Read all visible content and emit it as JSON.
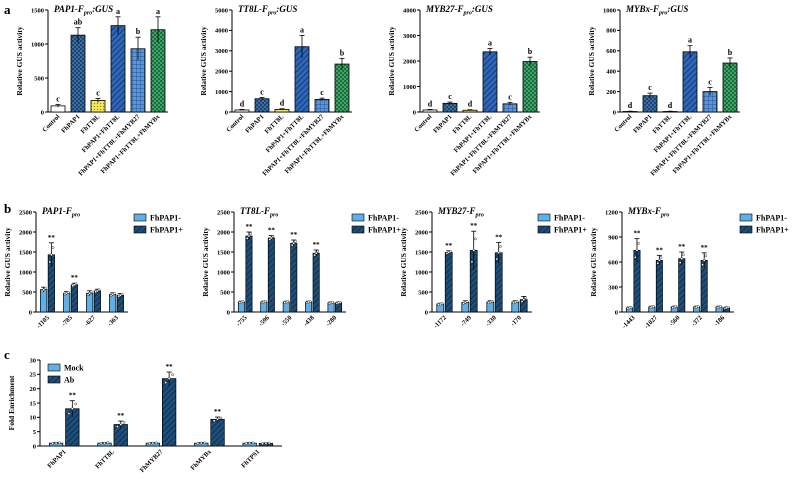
{
  "panel_labels": [
    "a",
    "b",
    "c"
  ],
  "colors": {
    "control": "#ffffff",
    "fhpap1": "#3a6ea5",
    "fhtt8l": "#f2e65a",
    "pap1_tt8l": "#2e66b8",
    "pap1_tt8l_myb27": "#5b95d9",
    "pap1_tt8l_mybx": "#3fa46a",
    "minus": "#5fb0e6",
    "plus": "#1e4f7a",
    "mock": "#5fb0e6",
    "ab": "#1e4f7a"
  },
  "chart_data": [
    {
      "id": "a1",
      "type": "bar",
      "title_main": "PAP1-F",
      "title_sub": "pro",
      "title_tail": ":GUS",
      "ylabel": "Relative GUS activity",
      "ylim": [
        0,
        1500
      ],
      "yticks": [
        0,
        500,
        1000,
        1500
      ],
      "categories": [
        "Control",
        "FhPAP1",
        "FhTT8L",
        "FhPAP1+FhTT8L",
        "FhPAP1+FhTT8L+FhMYB27",
        "FhPAP1+FhTT8L+FhMYBx"
      ],
      "values": [
        90,
        1130,
        170,
        1270,
        930,
        1210
      ],
      "errors": [
        20,
        110,
        30,
        130,
        170,
        190
      ],
      "letters": [
        "c",
        "ab",
        "c",
        "a",
        "b",
        "a"
      ]
    },
    {
      "id": "a2",
      "type": "bar",
      "title_main": "TT8L-F",
      "title_sub": "pro",
      "title_tail": ":GUS",
      "ylabel": "Relative GUS activity",
      "ylim": [
        0,
        5000
      ],
      "yticks": [
        0,
        1000,
        2000,
        3000,
        4000,
        5000
      ],
      "categories": [
        "Control",
        "FhPAP1",
        "FhTT8L",
        "FhPAP1+FhTT8L",
        "FhPAP1+FhTT8L+FhMYB27",
        "FhPAP1+FhTT8L+FhMYBx"
      ],
      "values": [
        100,
        650,
        130,
        3200,
        620,
        2350
      ],
      "errors": [
        30,
        60,
        30,
        550,
        60,
        280
      ],
      "letters": [
        "d",
        "c",
        "d",
        "a",
        "c",
        "b"
      ]
    },
    {
      "id": "a3",
      "type": "bar",
      "title_main": "MYB27-F",
      "title_sub": "pro",
      "title_tail": ":GUS",
      "ylabel": "Relative GUS activity",
      "ylim": [
        0,
        4000
      ],
      "yticks": [
        0,
        1000,
        2000,
        3000,
        4000
      ],
      "categories": [
        "Control",
        "FhPAP1",
        "FhTT8L",
        "FhPAP1+FhTT8L",
        "FhPAP1+FhTT8L+FhMYB27",
        "FhPAP1+FhTT8L+FhMYBx"
      ],
      "values": [
        80,
        340,
        70,
        2360,
        320,
        1980
      ],
      "errors": [
        20,
        50,
        20,
        130,
        60,
        170
      ],
      "letters": [
        "d",
        "c",
        "d",
        "a",
        "c",
        "b"
      ]
    },
    {
      "id": "a4",
      "type": "bar",
      "title_main": "MYBx-F",
      "title_sub": "pro",
      "title_tail": ":GUS",
      "ylabel": "Relative GUS activity",
      "ylim": [
        0,
        1000
      ],
      "yticks": [
        0,
        200,
        400,
        600,
        800,
        1000
      ],
      "categories": [
        "Control",
        "FhPAP1",
        "FhTT8L",
        "FhPAP1+FhTT8L",
        "FhPAP1+FhTT8L+FhMYB27",
        "FhPAP1+FhTT8L+FhMYBx"
      ],
      "values": [
        5,
        160,
        5,
        590,
        200,
        480
      ],
      "errors": [
        3,
        25,
        3,
        60,
        40,
        50
      ],
      "letters": [
        "d",
        "c",
        "d",
        "a",
        "c",
        "b"
      ]
    },
    {
      "id": "b1",
      "type": "grouped-bar",
      "title_main": "PAP1-F",
      "title_sub": "pro",
      "title_tail": "",
      "ylabel": "Relative GUS activity",
      "ylim": [
        0,
        2500
      ],
      "yticks": [
        0,
        500,
        1000,
        1500,
        2000,
        2500
      ],
      "categories": [
        "-1105",
        "-785",
        "-627",
        "-363"
      ],
      "series": [
        {
          "name": "FhPAP1-",
          "values": [
            560,
            470,
            470,
            440
          ],
          "errors": [
            60,
            40,
            60,
            40
          ]
        },
        {
          "name": "FhPAP1+",
          "values": [
            1430,
            680,
            530,
            420
          ],
          "errors": [
            300,
            40,
            40,
            40
          ]
        }
      ],
      "sig": [
        "**",
        "**",
        "",
        ""
      ]
    },
    {
      "id": "b2",
      "type": "grouped-bar",
      "title_main": "TT8L-F",
      "title_sub": "pro",
      "title_tail": "",
      "ylabel": "Relative GUS activity",
      "ylim": [
        0,
        2500
      ],
      "yticks": [
        0,
        500,
        1000,
        1500,
        2000,
        2500
      ],
      "categories": [
        "-755",
        "-596",
        "-550",
        "-438",
        "-280"
      ],
      "series": [
        {
          "name": "FhPAP1-",
          "values": [
            250,
            250,
            250,
            250,
            230
          ],
          "errors": [
            20,
            20,
            20,
            20,
            20
          ]
        },
        {
          "name": "FhPAP1+",
          "values": [
            1900,
            1850,
            1720,
            1470,
            230
          ],
          "errors": [
            100,
            60,
            80,
            80,
            20
          ]
        }
      ],
      "sig": [
        "**",
        "**",
        "**",
        "**",
        ""
      ]
    },
    {
      "id": "b3",
      "type": "grouped-bar",
      "title_main": "MYB27-F",
      "title_sub": "pro",
      "title_tail": "",
      "ylabel": "Relative GUS activity",
      "ylim": [
        0,
        2500
      ],
      "yticks": [
        0,
        500,
        1000,
        1500,
        2000,
        2500
      ],
      "categories": [
        "-1172",
        "-749",
        "-330",
        "-170"
      ],
      "series": [
        {
          "name": "FhPAP1-",
          "values": [
            200,
            240,
            250,
            250
          ],
          "errors": [
            20,
            40,
            30,
            30
          ]
        },
        {
          "name": "FhPAP1+",
          "values": [
            1490,
            1540,
            1480,
            310
          ],
          "errors": [
            40,
            480,
            260,
            80
          ]
        }
      ],
      "sig": [
        "**",
        "**",
        "**",
        ""
      ]
    },
    {
      "id": "b4",
      "type": "grouped-bar",
      "title_main": "MYBx-F",
      "title_sub": "pro",
      "title_tail": "",
      "ylabel": "Relative GUS activity",
      "ylim": [
        0,
        1200
      ],
      "yticks": [
        0,
        300,
        600,
        900,
        1200
      ],
      "categories": [
        "-1443",
        "-1027",
        "-560",
        "-372",
        "-186"
      ],
      "series": [
        {
          "name": "FhPAP1-",
          "values": [
            50,
            60,
            60,
            60,
            60
          ],
          "errors": [
            10,
            10,
            10,
            10,
            10
          ]
        },
        {
          "name": "FhPAP1+",
          "values": [
            740,
            620,
            640,
            620,
            50
          ],
          "errors": [
            140,
            60,
            80,
            90,
            10
          ]
        }
      ],
      "sig": [
        "**",
        "**",
        "**",
        "**",
        ""
      ]
    },
    {
      "id": "c",
      "type": "grouped-bar",
      "title_main": "",
      "title_sub": "",
      "title_tail": "",
      "ylabel": "Fold Enrichment",
      "ylim": [
        0,
        30
      ],
      "yticks": [
        0,
        5,
        10,
        15,
        20,
        25,
        30
      ],
      "categories": [
        "FhPAP1",
        "FhTT8L",
        "FhMYB27",
        "FhMYBx",
        "FhTPS1"
      ],
      "series": [
        {
          "name": "Mock",
          "values": [
            1.0,
            1.0,
            1.0,
            1.0,
            1.0
          ],
          "errors": [
            0.2,
            0.2,
            0.2,
            0.2,
            0.2
          ]
        },
        {
          "name": "Ab",
          "values": [
            13.0,
            7.5,
            23.5,
            9.3,
            0.9
          ],
          "errors": [
            2.8,
            1.2,
            2.3,
            0.8,
            0.2
          ]
        }
      ],
      "sig": [
        "**",
        "**",
        "**",
        "**",
        ""
      ]
    }
  ]
}
